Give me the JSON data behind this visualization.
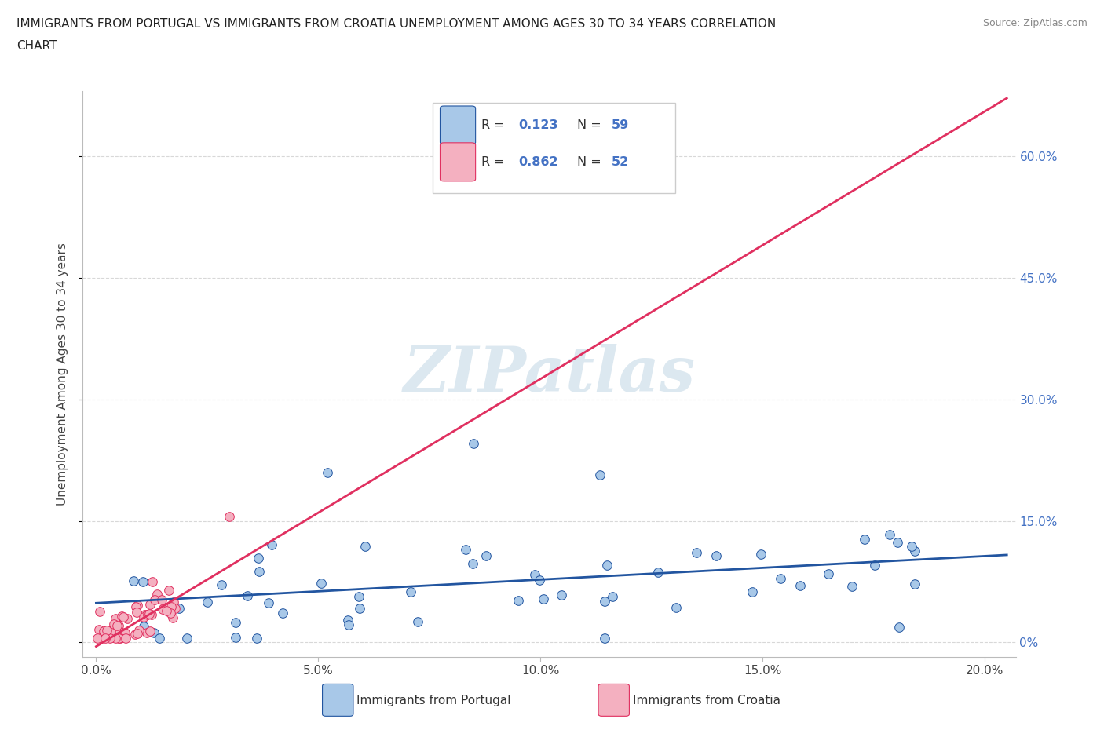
{
  "title_line1": "IMMIGRANTS FROM PORTUGAL VS IMMIGRANTS FROM CROATIA UNEMPLOYMENT AMONG AGES 30 TO 34 YEARS CORRELATION",
  "title_line2": "CHART",
  "source": "Source: ZipAtlas.com",
  "ylabel": "Unemployment Among Ages 30 to 34 years",
  "portugal_R": 0.123,
  "portugal_N": 59,
  "croatia_R": 0.862,
  "croatia_N": 52,
  "portugal_scatter_color": "#a8c8e8",
  "croatia_scatter_color": "#f4b0c0",
  "portugal_line_color": "#2255a0",
  "croatia_line_color": "#e03060",
  "background_color": "#ffffff",
  "watermark_color": "#dce8f0",
  "grid_color": "#d8d8d8",
  "tick_color": "#4472c4",
  "label_color": "#444444",
  "legend_label_portugal": "Immigrants from Portugal",
  "legend_label_croatia": "Immigrants from Croatia"
}
